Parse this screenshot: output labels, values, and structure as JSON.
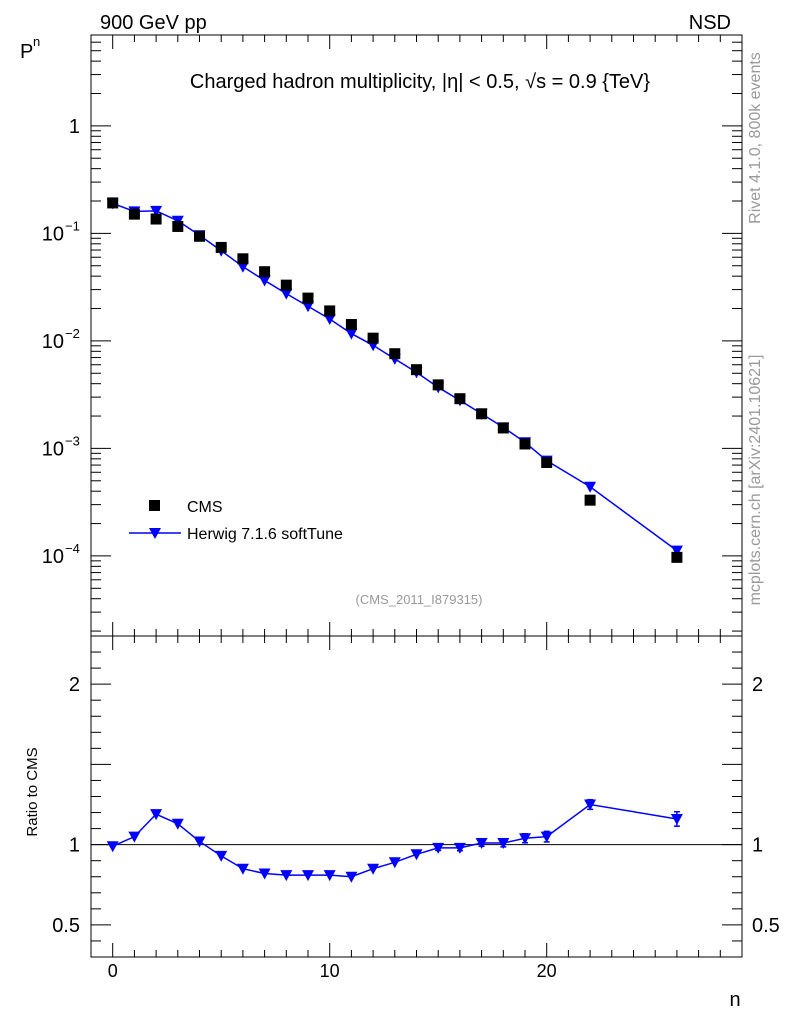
{
  "header": {
    "left_label": "900 GeV pp",
    "right_label": "NSD"
  },
  "side_labels": {
    "rivet": "Rivet 4.1.0,  800k events",
    "mcplots": "mcplots.cern.ch [arXiv:2401.10621]"
  },
  "chart_data": [
    {
      "type": "scatter",
      "panel": "main",
      "title": "Charged hadron multiplicity, |η| < 0.5, √s = 0.9 {TeV}",
      "ylabel": "P_n",
      "ylabel_main": "P",
      "ylabel_sub": "n",
      "yscale": "log",
      "ylim": [
        1.8e-05,
        7
      ],
      "xlim": [
        -1,
        29
      ],
      "ytick_mantissa": [
        "1",
        "10",
        "10",
        "10",
        "10"
      ],
      "ytick_exp": [
        "",
        "−1",
        "−2",
        "−3",
        "−4"
      ],
      "ytick_values": [
        1,
        0.1,
        0.01,
        0.001,
        0.0001
      ],
      "analysis_label": "(CMS_2011_I879315)",
      "legend": {
        "position": "lower-left",
        "entries": [
          "CMS",
          "Herwig 7.1.6 softTune"
        ]
      },
      "series": [
        {
          "name": "CMS",
          "marker": "square",
          "color": "#000000",
          "x": [
            0,
            1,
            2,
            3,
            4,
            5,
            6,
            7,
            8,
            9,
            10,
            11,
            12,
            13,
            14,
            15,
            16,
            17,
            18,
            19,
            20,
            22,
            26
          ],
          "y": [
            0.192,
            0.151,
            0.136,
            0.116,
            0.094,
            0.074,
            0.058,
            0.044,
            0.033,
            0.025,
            0.019,
            0.0142,
            0.0106,
            0.0076,
            0.0054,
            0.0039,
            0.0029,
            0.0021,
            0.00155,
            0.0011,
            0.00074,
            0.00033,
            9.7e-05
          ]
        },
        {
          "name": "Herwig 7.1.6 softTune",
          "marker": "triangle-down",
          "color": "#0000ff",
          "x": [
            0,
            1,
            2,
            3,
            4,
            5,
            6,
            7,
            8,
            9,
            10,
            11,
            12,
            13,
            14,
            15,
            16,
            17,
            18,
            19,
            20,
            22,
            26
          ],
          "y": [
            0.19,
            0.16,
            0.162,
            0.131,
            0.096,
            0.069,
            0.049,
            0.0365,
            0.0275,
            0.021,
            0.016,
            0.0117,
            0.0091,
            0.0068,
            0.0051,
            0.0037,
            0.0028,
            0.0021,
            0.00157,
            0.00114,
            0.00077,
            0.00044,
            0.000112
          ]
        }
      ]
    },
    {
      "type": "line",
      "panel": "ratio",
      "xlabel": "n",
      "ylabel": "Ratio to CMS",
      "ylim": [
        0.3,
        2.3
      ],
      "xlim": [
        -1,
        29
      ],
      "yticks": [
        0.5,
        1,
        2
      ],
      "ytick_labels": [
        "0.5",
        "1",
        "2"
      ],
      "xticks": [
        0,
        10,
        20
      ],
      "xtick_labels": [
        "0",
        "10",
        "20"
      ],
      "reference_line": 1,
      "series": [
        {
          "name": "Herwig 7.1.6 softTune",
          "color": "#0000ff",
          "x": [
            0,
            1,
            2,
            3,
            4,
            5,
            6,
            7,
            8,
            9,
            10,
            11,
            12,
            13,
            14,
            15,
            16,
            17,
            18,
            19,
            20,
            22,
            26
          ],
          "y": [
            0.99,
            1.05,
            1.19,
            1.13,
            1.02,
            0.93,
            0.85,
            0.82,
            0.81,
            0.81,
            0.81,
            0.8,
            0.85,
            0.89,
            0.94,
            0.98,
            0.98,
            1.01,
            1.01,
            1.04,
            1.05,
            1.25,
            1.16
          ],
          "err": [
            0.005,
            0.005,
            0.006,
            0.006,
            0.007,
            0.007,
            0.008,
            0.008,
            0.009,
            0.009,
            0.01,
            0.01,
            0.012,
            0.012,
            0.014,
            0.016,
            0.018,
            0.02,
            0.024,
            0.028,
            0.033,
            0.03,
            0.045
          ]
        }
      ]
    }
  ]
}
